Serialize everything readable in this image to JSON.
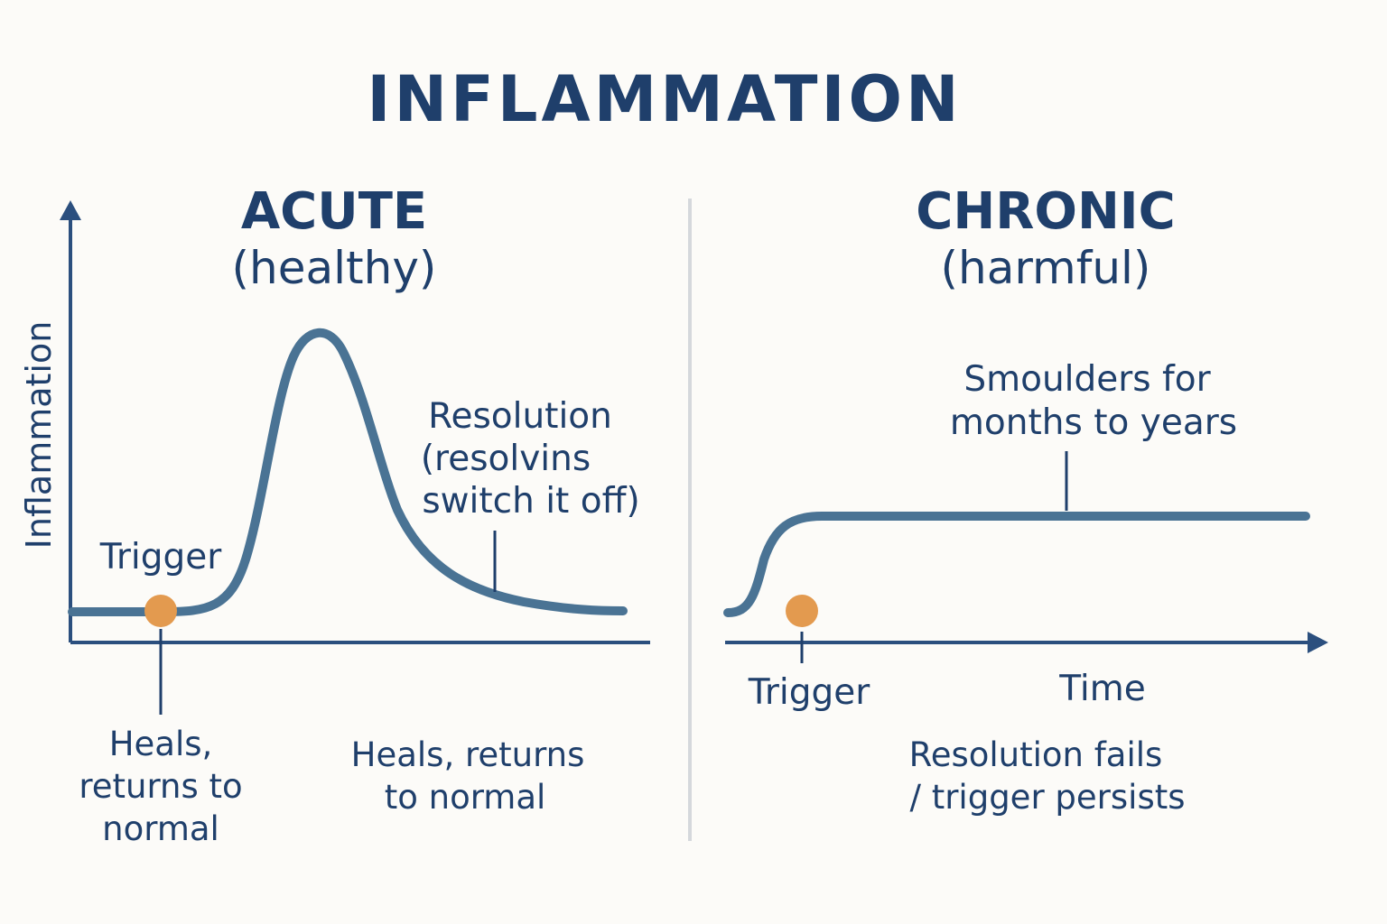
{
  "title": "INFLAMMATION",
  "acute": {
    "heading": "ACUTE",
    "subheading": "(healthy)",
    "y_axis_label": "Inflammation",
    "trigger_label": "Trigger",
    "resolution_lines": [
      "Resolution",
      "(resolvins",
      "switch it off)"
    ],
    "below_trigger_lines": [
      "Heals,",
      "returns to",
      "normal"
    ],
    "bottom_lines": [
      "Heals, returns",
      "to normal"
    ]
  },
  "chronic": {
    "heading": "CHRONIC",
    "subheading": "(harmful)",
    "plateau_lines": [
      "Smoulders for",
      "months to years"
    ],
    "trigger_label": "Trigger",
    "x_axis_label": "Time",
    "bottom_lines": [
      "Resolution fails",
      "/ trigger persists"
    ]
  },
  "colors": {
    "text": "#1f3f6b",
    "curve": "#4a7394",
    "axis": "#2b4f7e",
    "trigger_dot": "#e39a4f",
    "divider": "#d5d8dc",
    "background": "#fcfbf8"
  }
}
